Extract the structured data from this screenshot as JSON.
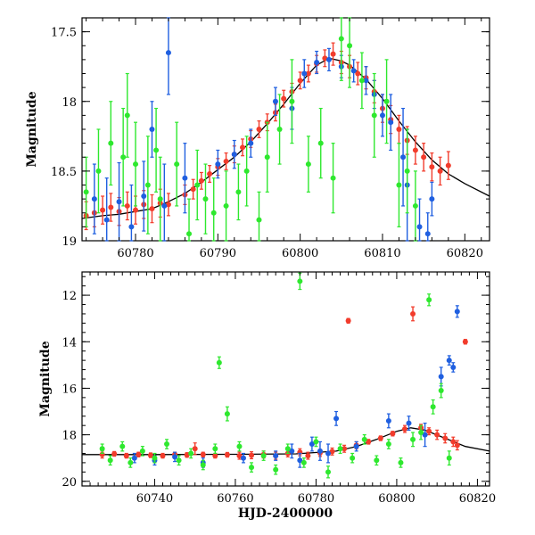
{
  "colors": {
    "green": "#2ee82e",
    "red": "#f23c2c",
    "blue": "#1f5fe0",
    "curve": "#000000",
    "axis": "#000000"
  },
  "chart_data": [
    {
      "type": "scatter",
      "panel": "top",
      "title": "",
      "xlabel": "",
      "ylabel": "Magnitude",
      "xlim": [
        60773.5,
        60823
      ],
      "ylim": [
        19.0,
        17.4
      ],
      "y_inverted": true,
      "xticks": [
        60780,
        60790,
        60800,
        60810,
        60820
      ],
      "yticks": [
        17.5,
        18,
        18.5,
        19
      ],
      "ytick_labels": [
        "17.5",
        "18",
        "18.5",
        "19"
      ],
      "grid": false,
      "model_curve": {
        "x": [
          60773.5,
          60776,
          60778,
          60780,
          60782,
          60784,
          60786,
          60788,
          60790,
          60792,
          60794,
          60796,
          60798,
          60800,
          60802,
          60803.5,
          60805,
          60806,
          60808,
          60810,
          60812,
          60814,
          60816,
          60818,
          60820,
          60823
        ],
        "y": [
          18.84,
          18.82,
          18.81,
          18.79,
          18.77,
          18.72,
          18.66,
          18.58,
          18.49,
          18.4,
          18.29,
          18.16,
          18.02,
          17.87,
          17.74,
          17.69,
          17.71,
          17.74,
          17.84,
          17.98,
          18.14,
          18.29,
          18.42,
          18.52,
          18.59,
          18.68
        ]
      },
      "series": [
        {
          "color": "red",
          "x": [
            60774,
            60775,
            60776,
            60777,
            60778,
            60779,
            60780,
            60781,
            60782,
            60783,
            60784,
            60786,
            60787,
            60788,
            60789,
            60790,
            60791,
            60792,
            60793,
            60794,
            60795,
            60796,
            60797,
            60798,
            60799,
            60800,
            60801,
            60802,
            60803,
            60804,
            60805,
            60806,
            60807,
            60808,
            60809,
            60810,
            60811,
            60812,
            60813,
            60814,
            60815,
            60816,
            60817,
            60818
          ],
          "y": [
            18.82,
            18.8,
            18.78,
            18.76,
            18.79,
            18.75,
            18.78,
            18.74,
            18.77,
            18.73,
            18.74,
            18.67,
            18.63,
            18.57,
            18.52,
            18.47,
            18.43,
            18.38,
            18.33,
            18.27,
            18.2,
            18.15,
            18.08,
            17.98,
            17.93,
            17.85,
            17.8,
            17.73,
            17.69,
            17.66,
            17.72,
            17.75,
            17.8,
            17.83,
            17.93,
            18.05,
            18.13,
            18.2,
            18.28,
            18.35,
            18.4,
            18.47,
            18.5,
            18.46
          ],
          "err": [
            0.1,
            0.1,
            0.1,
            0.1,
            0.1,
            0.1,
            0.1,
            0.1,
            0.1,
            0.1,
            0.08,
            0.07,
            0.07,
            0.06,
            0.06,
            0.06,
            0.06,
            0.06,
            0.06,
            0.06,
            0.06,
            0.06,
            0.06,
            0.06,
            0.06,
            0.06,
            0.06,
            0.06,
            0.06,
            0.08,
            0.08,
            0.08,
            0.08,
            0.08,
            0.08,
            0.1,
            0.1,
            0.1,
            0.1,
            0.1,
            0.1,
            0.1,
            0.1,
            0.1
          ]
        },
        {
          "color": "blue",
          "x": [
            60775,
            60776.5,
            60778,
            60779.5,
            60781,
            60782,
            60783.5,
            60784,
            60786,
            60790,
            60792,
            60794,
            60797,
            60799,
            60800.5,
            60802,
            60803.5,
            60805,
            60806.5,
            60808,
            60809,
            60810,
            60811,
            60812.5,
            60813,
            60814.5,
            60815.5,
            60816
          ],
          "y": [
            18.7,
            18.85,
            18.72,
            18.9,
            18.68,
            18.2,
            18.75,
            17.65,
            18.55,
            18.45,
            18.38,
            18.3,
            18.0,
            18.05,
            17.8,
            17.72,
            17.7,
            17.75,
            17.78,
            17.85,
            17.95,
            18.1,
            18.15,
            18.4,
            18.6,
            18.9,
            18.95,
            18.7
          ],
          "err": [
            0.25,
            0.3,
            0.28,
            0.3,
            0.25,
            0.2,
            0.3,
            0.3,
            0.25,
            0.1,
            0.1,
            0.1,
            0.1,
            0.15,
            0.1,
            0.08,
            0.08,
            0.08,
            0.08,
            0.1,
            0.1,
            0.15,
            0.2,
            0.35,
            0.4,
            0.2,
            0.15,
            0.12
          ]
        },
        {
          "color": "green",
          "x": [
            60774,
            60775.5,
            60777,
            60778.5,
            60779,
            60780,
            60781.5,
            60782.5,
            60783,
            60785,
            60786.5,
            60787.5,
            60788.5,
            60789.5,
            60791,
            60792.5,
            60793.5,
            60795,
            60796,
            60797.5,
            60799,
            60801,
            60802.5,
            60804,
            60805,
            60806,
            60807.5,
            60809,
            60810.5,
            60812,
            60813,
            60814
          ],
          "y": [
            18.65,
            18.5,
            18.3,
            18.4,
            18.1,
            18.45,
            18.6,
            18.35,
            18.7,
            18.45,
            18.95,
            18.6,
            18.7,
            18.8,
            18.75,
            18.65,
            18.5,
            18.85,
            18.4,
            18.2,
            18.0,
            18.45,
            18.3,
            18.55,
            17.55,
            17.6,
            17.85,
            18.1,
            18.0,
            18.6,
            18.5,
            18.75
          ],
          "err": [
            0.25,
            0.3,
            0.3,
            0.35,
            0.3,
            0.3,
            0.35,
            0.3,
            0.3,
            0.3,
            0.25,
            0.25,
            0.25,
            0.25,
            0.25,
            0.2,
            0.25,
            0.2,
            0.25,
            0.25,
            0.3,
            0.2,
            0.25,
            0.25,
            0.3,
            0.3,
            0.2,
            0.3,
            0.3,
            0.3,
            0.3,
            0.25
          ]
        }
      ]
    },
    {
      "type": "scatter",
      "panel": "bottom",
      "title": "",
      "xlabel": "HJD-2400000",
      "ylabel": "Magnitude",
      "xlim": [
        60722,
        60823
      ],
      "ylim": [
        20.2,
        11.0
      ],
      "y_inverted": true,
      "xticks": [
        60740,
        60760,
        60780,
        60800,
        60820
      ],
      "yticks": [
        12,
        14,
        16,
        18,
        20
      ],
      "ytick_labels": [
        "12",
        "14",
        "16",
        "18",
        "20"
      ],
      "grid": false,
      "model_curve": {
        "x": [
          60722,
          60740,
          60760,
          60775,
          60785,
          60790,
          60795,
          60800,
          60803.5,
          60807,
          60812,
          60817,
          60823
        ],
        "y": [
          18.85,
          18.85,
          18.84,
          18.82,
          18.7,
          18.5,
          18.2,
          17.85,
          17.7,
          17.8,
          18.15,
          18.5,
          18.7
        ]
      },
      "series": [
        {
          "color": "red",
          "x": [
            60727,
            60730,
            60733,
            60736,
            60739,
            60742,
            60745,
            60748,
            60750,
            60752,
            60755,
            60758,
            60761,
            60764,
            60767,
            60770,
            60773,
            60776,
            60778,
            60781,
            60784,
            60787,
            60788,
            60790,
            60793,
            60796,
            60799,
            60802,
            60804,
            60806,
            60808,
            60810,
            60812,
            60814,
            60815,
            60817
          ],
          "y": [
            18.85,
            18.82,
            18.9,
            18.85,
            18.88,
            18.9,
            18.85,
            18.87,
            18.6,
            18.85,
            18.9,
            18.86,
            18.9,
            18.88,
            18.85,
            18.9,
            18.8,
            18.75,
            18.9,
            18.78,
            18.72,
            18.6,
            13.1,
            18.45,
            18.3,
            18.15,
            17.95,
            17.75,
            12.8,
            17.7,
            17.85,
            18.0,
            18.15,
            18.3,
            18.45,
            14.0
          ],
          "err": [
            0.15,
            0.1,
            0.1,
            0.1,
            0.1,
            0.1,
            0.1,
            0.1,
            0.25,
            0.1,
            0.1,
            0.1,
            0.15,
            0.15,
            0.15,
            0.15,
            0.15,
            0.15,
            0.15,
            0.15,
            0.15,
            0.15,
            0.1,
            0.15,
            0.1,
            0.1,
            0.1,
            0.15,
            0.3,
            0.15,
            0.15,
            0.2,
            0.2,
            0.2,
            0.2,
            0.1
          ]
        },
        {
          "color": "blue",
          "x": [
            60735,
            60740,
            60745,
            60752,
            60762,
            60770,
            60774,
            60776,
            60779,
            60781,
            60783,
            60785,
            60790,
            60798,
            60803,
            60807,
            60811,
            60813,
            60814,
            60815
          ],
          "y": [
            19.0,
            19.1,
            18.95,
            19.2,
            19.0,
            18.9,
            18.7,
            19.1,
            18.4,
            18.7,
            18.8,
            17.3,
            18.5,
            17.4,
            17.5,
            18.0,
            15.5,
            14.8,
            15.1,
            12.7
          ],
          "err": [
            0.2,
            0.2,
            0.2,
            0.2,
            0.2,
            0.2,
            0.3,
            0.3,
            0.3,
            0.4,
            0.4,
            0.3,
            0.2,
            0.3,
            0.3,
            0.5,
            0.4,
            0.2,
            0.2,
            0.25
          ]
        },
        {
          "color": "green",
          "x": [
            60727,
            60729,
            60732,
            60734,
            60737,
            60740,
            60743,
            60746,
            60749,
            60752,
            60755,
            60756,
            60758,
            60761,
            60764,
            60767,
            60770,
            60773,
            60776,
            60777,
            60780,
            60783,
            60786,
            60789,
            60792,
            60795,
            60798,
            60801,
            60804,
            60806,
            60808,
            60809,
            60811,
            60813
          ],
          "y": [
            18.6,
            19.1,
            18.5,
            19.2,
            18.7,
            19.0,
            18.4,
            19.1,
            18.8,
            19.3,
            18.6,
            14.9,
            17.1,
            18.5,
            19.4,
            18.9,
            19.5,
            18.6,
            11.4,
            19.2,
            18.3,
            19.6,
            18.6,
            19.0,
            18.2,
            19.1,
            18.4,
            19.2,
            18.2,
            17.9,
            12.2,
            16.8,
            16.1,
            19.0
          ],
          "err": [
            0.2,
            0.2,
            0.2,
            0.2,
            0.2,
            0.2,
            0.2,
            0.2,
            0.2,
            0.2,
            0.2,
            0.25,
            0.3,
            0.2,
            0.2,
            0.2,
            0.2,
            0.2,
            0.35,
            0.2,
            0.2,
            0.25,
            0.2,
            0.2,
            0.2,
            0.2,
            0.2,
            0.2,
            0.3,
            0.3,
            0.25,
            0.3,
            0.3,
            0.3
          ]
        }
      ]
    }
  ]
}
